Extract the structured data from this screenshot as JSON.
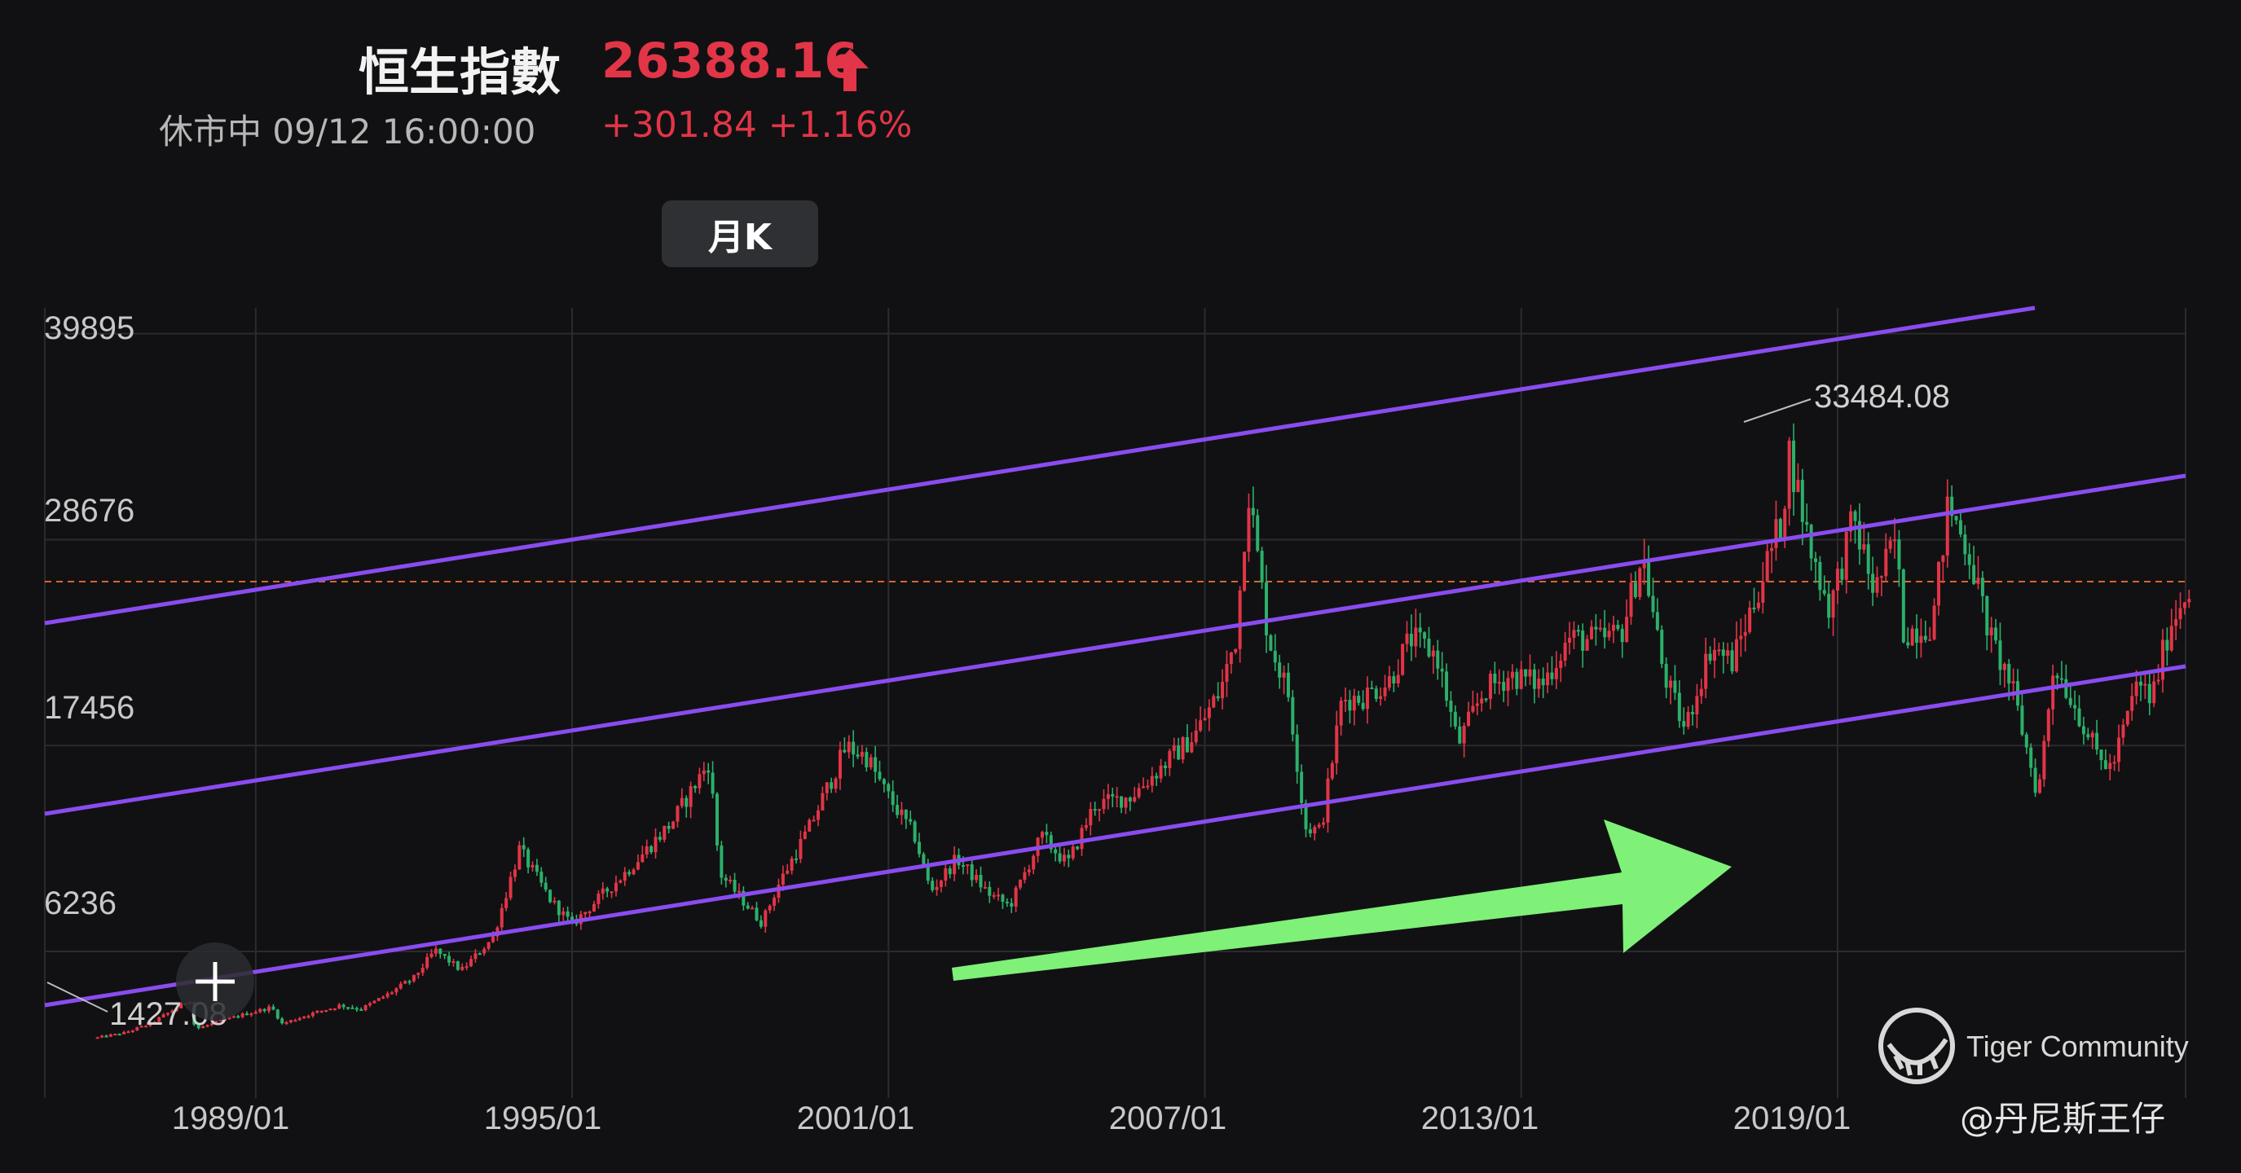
{
  "header": {
    "title": "恒生指數",
    "price": "26388.16",
    "status": "休市中 09/12 16:00:00",
    "change": "+301.84 +1.16%",
    "period_button": "月K"
  },
  "watermark": {
    "brand": "Tiger Community",
    "author": "@丹尼斯王仔"
  },
  "colors": {
    "up": "#e23547",
    "down": "#2bb06a",
    "channel": "#8a4cf0",
    "arrow": "#7ff078",
    "ref_line": "#d9652c",
    "grid": "#2a2b2e",
    "axis_text": "#c8c8c8"
  },
  "chart_data": {
    "type": "candlestick",
    "interval": "monthly",
    "y_ticks": [
      "39895",
      "28676",
      "17456",
      "6236"
    ],
    "x_ticks": [
      "1989/01",
      "1995/01",
      "2001/01",
      "2007/01",
      "2013/01",
      "2019/01"
    ],
    "annotations": {
      "high": "33484.08",
      "low": "1427.08"
    },
    "reference_line": 26388.16,
    "y_range": [
      -1750,
      41300
    ],
    "x_range": [
      1985.0,
      2025.6
    ],
    "series": [
      {
        "values": [
          [
            1986.0,
            1550
          ],
          [
            1986.5,
            1800
          ],
          [
            1987.0,
            2300
          ],
          [
            1987.75,
            3600
          ],
          [
            1987.85,
            2000
          ],
          [
            1988.5,
            2600
          ],
          [
            1989.3,
            3200
          ],
          [
            1989.5,
            2300
          ],
          [
            1990.0,
            2800
          ],
          [
            1990.6,
            3300
          ],
          [
            1991.0,
            3100
          ],
          [
            1991.5,
            3900
          ],
          [
            1992.0,
            4800
          ],
          [
            1992.4,
            6300
          ],
          [
            1992.9,
            5200
          ],
          [
            1993.5,
            7000
          ],
          [
            1994.0,
            11800
          ],
          [
            1994.6,
            9000
          ],
          [
            1995.0,
            7700
          ],
          [
            1995.6,
            9400
          ],
          [
            1996.0,
            10500
          ],
          [
            1996.9,
            13300
          ],
          [
            1997.6,
            16600
          ],
          [
            1997.8,
            10500
          ],
          [
            1998.6,
            7800
          ],
          [
            1998.9,
            9800
          ],
          [
            1999.5,
            13000
          ],
          [
            2000.2,
            17400
          ],
          [
            2000.6,
            16800
          ],
          [
            2000.9,
            15100
          ],
          [
            2001.5,
            12500
          ],
          [
            2001.8,
            9500
          ],
          [
            2002.3,
            11300
          ],
          [
            2002.9,
            9400
          ],
          [
            2003.3,
            8700
          ],
          [
            2003.9,
            12500
          ],
          [
            2004.4,
            11000
          ],
          [
            2004.9,
            14200
          ],
          [
            2005.6,
            14700
          ],
          [
            2006.0,
            15800
          ],
          [
            2006.8,
            18000
          ],
          [
            2007.3,
            20500
          ],
          [
            2007.6,
            23500
          ],
          [
            2007.82,
            31600
          ],
          [
            2008.2,
            23400
          ],
          [
            2008.6,
            20100
          ],
          [
            2008.9,
            13000
          ],
          [
            2009.2,
            12800
          ],
          [
            2009.6,
            20000
          ],
          [
            2010.0,
            20100
          ],
          [
            2010.5,
            21000
          ],
          [
            2010.9,
            23300
          ],
          [
            2011.4,
            22400
          ],
          [
            2011.8,
            17500
          ],
          [
            2012.3,
            20500
          ],
          [
            2012.8,
            21300
          ],
          [
            2013.4,
            20800
          ],
          [
            2013.9,
            23300
          ],
          [
            2014.5,
            23200
          ],
          [
            2014.9,
            23600
          ],
          [
            2015.3,
            27900
          ],
          [
            2015.7,
            21400
          ],
          [
            2016.1,
            18300
          ],
          [
            2016.6,
            22900
          ],
          [
            2017.0,
            22000
          ],
          [
            2017.5,
            26000
          ],
          [
            2017.95,
            29900
          ],
          [
            2018.08,
            33484
          ],
          [
            2018.5,
            28000
          ],
          [
            2018.85,
            24900
          ],
          [
            2019.3,
            29800
          ],
          [
            2019.7,
            25800
          ],
          [
            2020.1,
            28700
          ],
          [
            2020.25,
            23600
          ],
          [
            2020.8,
            24100
          ],
          [
            2021.1,
            30600
          ],
          [
            2021.5,
            27900
          ],
          [
            2021.9,
            23300
          ],
          [
            2022.3,
            20700
          ],
          [
            2022.8,
            14700
          ],
          [
            2023.1,
            22000
          ],
          [
            2023.6,
            19000
          ],
          [
            2023.95,
            16800
          ],
          [
            2024.2,
            16200
          ],
          [
            2024.7,
            21000
          ],
          [
            2024.95,
            19900
          ],
          [
            2025.3,
            24000
          ],
          [
            2025.7,
            26388
          ]
        ]
      }
    ]
  }
}
